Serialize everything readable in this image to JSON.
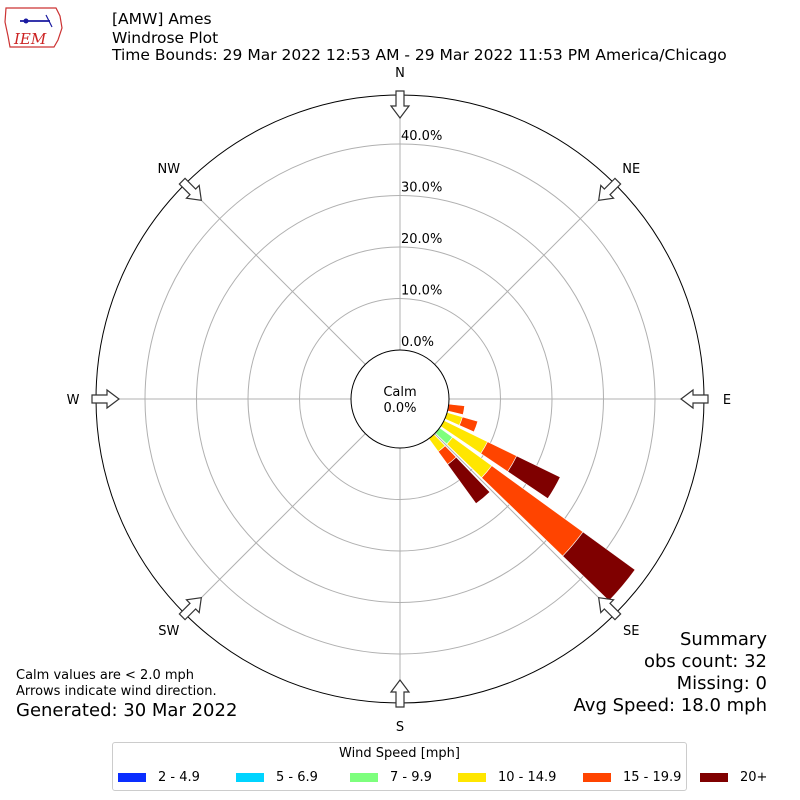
{
  "header": {
    "title": "[AMW] Ames",
    "subtitle": "Windrose Plot",
    "time_bounds": "Time Bounds: 29 Mar 2022 12:53 AM - 29 Mar 2022 11:53 PM America/Chicago"
  },
  "logo": {
    "text": "IEM"
  },
  "notes": {
    "calm_note": "Calm values are < 2.0 mph",
    "arrow_note": "Arrows indicate wind direction.",
    "generated": "Generated: 30 Mar 2022"
  },
  "summary": {
    "heading": "Summary",
    "obs_count": "obs count: 32",
    "missing": "Missing: 0",
    "avg_speed": "Avg Speed: 18.0 mph"
  },
  "chart_data": {
    "type": "windrose",
    "calm_label": "Calm",
    "calm_value": "0.0%",
    "directions": [
      "N",
      "NE",
      "E",
      "SE",
      "S",
      "SW",
      "W",
      "NW"
    ],
    "radial_ticks": [
      "0.0%",
      "10.0%",
      "20.0%",
      "30.0%",
      "40.0%"
    ],
    "radial_max": 50,
    "legend_title": "Wind Speed [mph]",
    "speed_bins": [
      {
        "label": "2 - 4.9",
        "color": "#0a2eff"
      },
      {
        "label": "5 - 6.9",
        "color": "#00d4ff"
      },
      {
        "label": "7 - 9.9",
        "color": "#7dff7d"
      },
      {
        "label": "10 - 14.9",
        "color": "#ffe600"
      },
      {
        "label": "15 - 19.9",
        "color": "#ff4400"
      },
      {
        "label": "20+",
        "color": "#7f0000"
      }
    ],
    "sectors": [
      {
        "direction_deg": 100,
        "values": [
          0,
          0,
          0,
          0,
          3.1,
          0
        ]
      },
      {
        "direction_deg": 110,
        "values": [
          0,
          0,
          0,
          3.1,
          3.1,
          0
        ]
      },
      {
        "direction_deg": 120,
        "values": [
          0,
          0,
          0,
          9.4,
          6.3,
          9.4
        ]
      },
      {
        "direction_deg": 130,
        "values": [
          0,
          0,
          3.1,
          9.4,
          21.9,
          12.5
        ]
      },
      {
        "direction_deg": 140,
        "values": [
          0,
          0,
          0,
          3.1,
          3.1,
          9.4
        ]
      }
    ]
  }
}
